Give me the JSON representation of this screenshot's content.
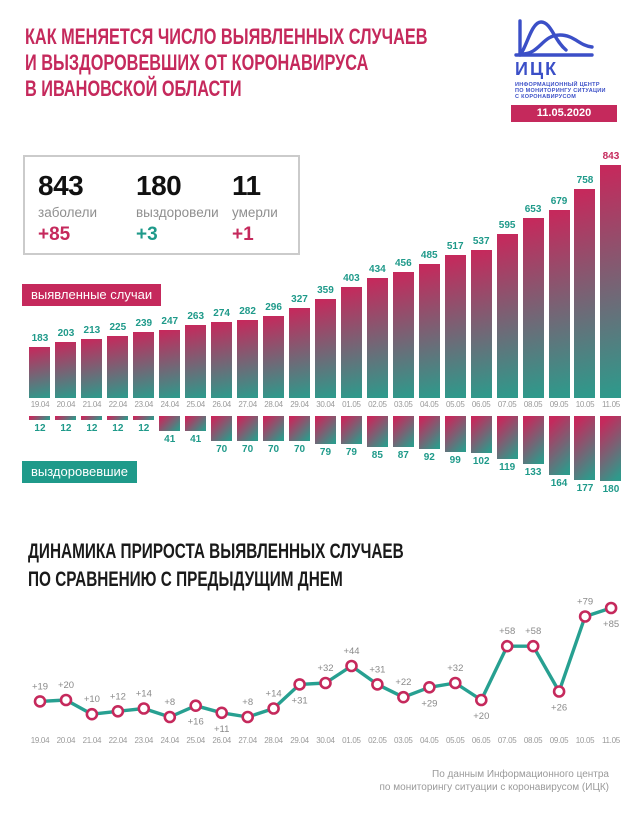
{
  "header": {
    "title_lines": [
      "КАК МЕНЯЕТСЯ ЧИСЛО ВЫЯВЛЕННЫХ СЛУЧАЕВ",
      "И ВЫЗДОРОВЕВШИХ ОТ КОРОНАВИРУСА",
      "В ИВАНОВСКОЙ ОБЛАСТИ"
    ]
  },
  "logo": {
    "acronym": "ИЦК",
    "subtitle_lines": [
      "ИНФОРМАЦИОННЫЙ ЦЕНТР",
      "ПО МОНИТОРИНГУ СИТУАЦИИ",
      "С КОРОНАВИРУСОМ"
    ],
    "date": "11.05.2020",
    "icon": "epidemic-curves-icon"
  },
  "stats": {
    "items": [
      {
        "value": "843",
        "label": "заболели",
        "delta": "+85",
        "delta_color": "crimson"
      },
      {
        "value": "180",
        "label": "выздоровели",
        "delta": "+3",
        "delta_color": "teal"
      },
      {
        "value": "11",
        "label": "умерли",
        "delta": "+1",
        "delta_color": "crimson"
      }
    ]
  },
  "chart_data": [
    {
      "type": "bar",
      "name": "confirmed-cases",
      "badge": "выявленные случаи",
      "direction": "up",
      "categories": [
        "19.04",
        "20.04",
        "21.04",
        "22.04",
        "23.04",
        "24.04",
        "25.04",
        "26.04",
        "27.04",
        "28.04",
        "29.04",
        "30.04",
        "01.05",
        "02.05",
        "03.05",
        "04.05",
        "05.05",
        "06.05",
        "07.05",
        "08.05",
        "09.05",
        "10.05",
        "11.05"
      ],
      "values": [
        183,
        203,
        213,
        225,
        239,
        247,
        263,
        274,
        282,
        296,
        327,
        359,
        403,
        434,
        456,
        485,
        517,
        537,
        595,
        653,
        679,
        758,
        843
      ],
      "highlight_last": true
    },
    {
      "type": "bar",
      "name": "recovered",
      "badge": "выздоровевшие",
      "direction": "down",
      "categories": [
        "19.04",
        "20.04",
        "21.04",
        "22.04",
        "23.04",
        "24.04",
        "25.04",
        "26.04",
        "27.04",
        "28.04",
        "29.04",
        "30.04",
        "01.05",
        "02.05",
        "03.05",
        "04.05",
        "05.05",
        "06.05",
        "07.05",
        "08.05",
        "09.05",
        "10.05",
        "11.05"
      ],
      "values": [
        12,
        12,
        12,
        12,
        12,
        41,
        41,
        70,
        70,
        70,
        70,
        79,
        79,
        85,
        87,
        92,
        99,
        102,
        119,
        133,
        164,
        177,
        180
      ],
      "highlight_last": false
    },
    {
      "type": "line",
      "name": "daily-increase",
      "title_lines": [
        "ДИНАМИКА ПРИРОСТА ВЫЯВЛЕННЫХ СЛУЧАЕВ",
        "ПО СРАВНЕНИЮ С ПРЕДЫДУЩИМ ДНЕМ"
      ],
      "categories": [
        "19.04",
        "20.04",
        "21.04",
        "22.04",
        "23.04",
        "24.04",
        "25.04",
        "26.04",
        "27.04",
        "28.04",
        "29.04",
        "30.04",
        "01.05",
        "02.05",
        "03.05",
        "04.05",
        "05.05",
        "06.05",
        "07.05",
        "08.05",
        "09.05",
        "10.05",
        "11.05"
      ],
      "values": [
        19,
        20,
        10,
        12,
        14,
        8,
        16,
        11,
        8,
        14,
        31,
        32,
        44,
        31,
        22,
        29,
        32,
        20,
        58,
        58,
        26,
        79,
        85
      ],
      "point_labels": [
        "+19",
        "+20",
        "+10",
        "+12",
        "+14",
        "+8",
        "+16",
        "+11",
        "+8",
        "+14",
        "+31",
        "+32",
        "+44",
        "+31",
        "+22",
        "+29",
        "+32",
        "+20",
        "+58",
        "+58",
        "+26",
        "+79",
        "+85"
      ],
      "label_side": [
        "above",
        "above",
        "above",
        "above",
        "above",
        "above",
        "below",
        "below",
        "above",
        "above",
        "below",
        "above",
        "above",
        "above",
        "above",
        "below",
        "above",
        "below",
        "above",
        "above",
        "below",
        "above",
        "below"
      ]
    }
  ],
  "footer": {
    "lines": [
      "По данным Информационного центра",
      "по мониторингу ситуации с коронавирусом (ИЦК)"
    ]
  },
  "colors": {
    "crimson": "#c5295c",
    "teal": "#1f9a8a",
    "logo_blue": "#3b4fc7",
    "gray_text": "#9a9a9a"
  }
}
